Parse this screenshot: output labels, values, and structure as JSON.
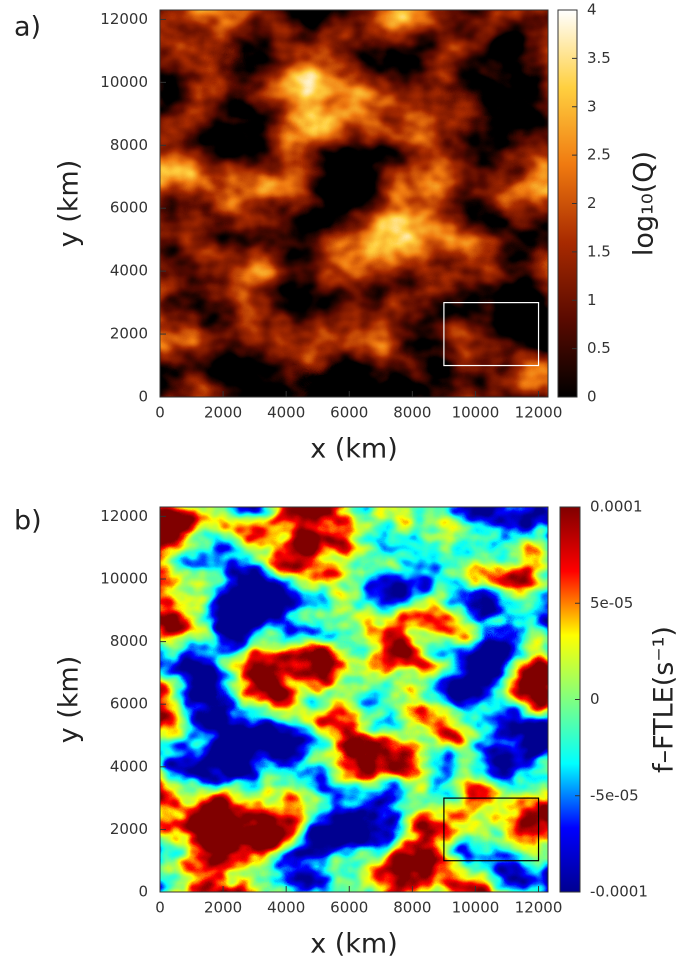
{
  "chart_data": [
    {
      "type": "heatmap",
      "panel_label": "a)",
      "xlabel": "x (km)",
      "ylabel": "y (km)",
      "colorbar_label": "log₁₀(Q)",
      "xlim": [
        0,
        12300
      ],
      "ylim": [
        0,
        12300
      ],
      "xticks": [
        0,
        2000,
        4000,
        6000,
        8000,
        10000,
        12000
      ],
      "yticks": [
        0,
        2000,
        4000,
        6000,
        8000,
        10000,
        12000
      ],
      "clim": [
        0,
        4
      ],
      "cticks": [
        0,
        0.5,
        1,
        1.5,
        2,
        2.5,
        3,
        3.5,
        4
      ],
      "colormap": [
        "#000000",
        "#5a0a00",
        "#a82a00",
        "#f07a10",
        "#ffd040",
        "#ffffff"
      ],
      "box": {
        "x": [
          9000,
          12000
        ],
        "y": [
          1000,
          3000
        ],
        "color": "#ffffff"
      }
    },
    {
      "type": "heatmap",
      "panel_label": "b)",
      "xlabel": "x (km)",
      "ylabel": "y (km)",
      "colorbar_label": "f–FTLE(s⁻¹)",
      "xlim": [
        0,
        12300
      ],
      "ylim": [
        0,
        12300
      ],
      "xticks": [
        0,
        2000,
        4000,
        6000,
        8000,
        10000,
        12000
      ],
      "yticks": [
        0,
        2000,
        4000,
        6000,
        8000,
        10000,
        12000
      ],
      "clim": [
        -0.0001,
        0.0001
      ],
      "cticks": [
        {
          "value": -0.0001,
          "label": "-0.0001"
        },
        {
          "value": -5e-05,
          "label": "-5e-05"
        },
        0,
        {
          "value": 5e-05,
          "label": "5e-05"
        },
        {
          "value": 0.0001,
          "label": "0.0001"
        }
      ],
      "colormap": [
        "#000090",
        "#0000ff",
        "#00ffff",
        "#80ff80",
        "#ffff00",
        "#ff0000",
        "#800000"
      ],
      "box": {
        "x": [
          9000,
          12000
        ],
        "y": [
          1000,
          3000
        ],
        "color": "#000000"
      }
    }
  ]
}
